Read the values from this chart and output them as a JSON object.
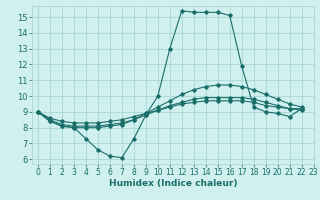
{
  "title": "",
  "xlabel": "Humidex (Indice chaleur)",
  "bg_color": "#cff0ee",
  "grid_color": "#a8d8d4",
  "line_color": "#1a6e6a",
  "xlim": [
    -0.5,
    23
  ],
  "ylim": [
    5.7,
    15.7
  ],
  "xticks": [
    0,
    1,
    2,
    3,
    4,
    5,
    6,
    7,
    8,
    9,
    10,
    11,
    12,
    13,
    14,
    15,
    16,
    17,
    18,
    19,
    20,
    21,
    22,
    23
  ],
  "yticks": [
    6,
    7,
    8,
    9,
    10,
    11,
    12,
    13,
    14,
    15
  ],
  "series": [
    [
      9.0,
      8.4,
      8.1,
      8.0,
      7.3,
      6.6,
      6.2,
      6.1,
      7.3,
      8.8,
      10.0,
      13.0,
      15.4,
      15.3,
      15.3,
      15.3,
      15.1,
      11.9,
      9.3,
      9.0,
      8.9,
      8.7,
      9.2,
      null
    ],
    [
      9.0,
      8.4,
      8.1,
      8.0,
      8.0,
      8.0,
      8.1,
      8.2,
      8.5,
      8.9,
      9.3,
      9.7,
      10.1,
      10.4,
      10.6,
      10.7,
      10.7,
      10.6,
      10.4,
      10.1,
      9.8,
      9.5,
      9.3,
      null
    ],
    [
      9.0,
      8.5,
      8.2,
      8.1,
      8.1,
      8.1,
      8.2,
      8.3,
      8.5,
      8.8,
      9.1,
      9.4,
      9.6,
      9.8,
      9.9,
      9.9,
      9.9,
      9.9,
      9.8,
      9.6,
      9.4,
      9.2,
      9.1,
      null
    ],
    [
      9.0,
      8.6,
      8.4,
      8.3,
      8.3,
      8.3,
      8.4,
      8.5,
      8.7,
      8.9,
      9.1,
      9.3,
      9.5,
      9.6,
      9.7,
      9.7,
      9.7,
      9.7,
      9.6,
      9.4,
      9.3,
      9.2,
      9.2,
      null
    ]
  ],
  "tick_fontsize": 5.5,
  "xlabel_fontsize": 6.5,
  "lw": 0.8,
  "ms": 1.8
}
